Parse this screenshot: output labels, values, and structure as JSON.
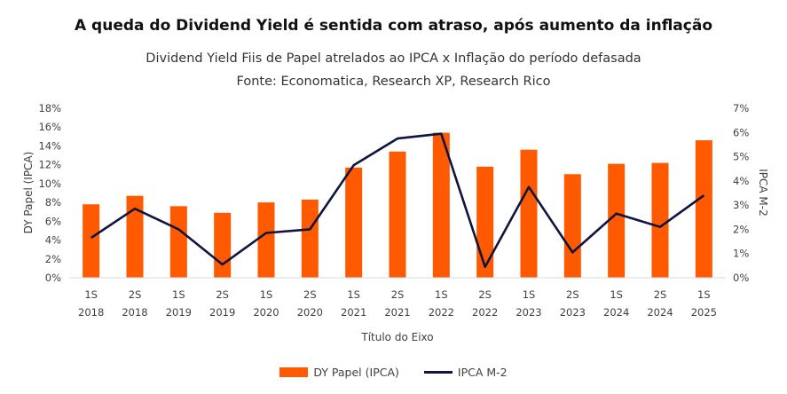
{
  "header": {
    "title": "A queda do Dividend Yield é sentida com atraso, após aumento da inflação",
    "subtitle": "Dividend Yield Fiis de Papel atrelados ao IPCA x Inflação do período defasada",
    "source": "Fonte: Economatica, Research XP, Research Rico"
  },
  "colors": {
    "bar": "#FF5A00",
    "line": "#0F1440",
    "axis": "#D9D9D9"
  },
  "chart_data": {
    "type": "bar",
    "title": "A queda do Dividend Yield é sentida com atraso, após aumento da inflação",
    "xlabel": "Título do Eixo",
    "ylabel": "DY Papel (IPCA)",
    "y2label": "IPCA M-2",
    "categories": [
      [
        "1S",
        "2018"
      ],
      [
        "2S",
        "2018"
      ],
      [
        "1S",
        "2019"
      ],
      [
        "2S",
        "2019"
      ],
      [
        "1S",
        "2020"
      ],
      [
        "2S",
        "2020"
      ],
      [
        "1S",
        "2021"
      ],
      [
        "2S",
        "2021"
      ],
      [
        "1S",
        "2022"
      ],
      [
        "2S",
        "2022"
      ],
      [
        "1S",
        "2023"
      ],
      [
        "2S",
        "2023"
      ],
      [
        "1S",
        "2024"
      ],
      [
        "2S",
        "2024"
      ],
      [
        "1S",
        "2025"
      ]
    ],
    "ylim": [
      0,
      18
    ],
    "yticks": [
      "0%",
      "2%",
      "4%",
      "6%",
      "8%",
      "10%",
      "12%",
      "14%",
      "16%",
      "18%"
    ],
    "y2lim": [
      0,
      7
    ],
    "y2ticks": [
      "0%",
      "1%",
      "2%",
      "3%",
      "4%",
      "5%",
      "6%",
      "7%"
    ],
    "series": [
      {
        "name": "DY Papel (IPCA)",
        "type": "bar",
        "axis": "left",
        "values": [
          7.8,
          8.7,
          7.6,
          6.9,
          8.0,
          8.3,
          11.7,
          13.4,
          15.4,
          11.8,
          13.6,
          11.0,
          12.1,
          12.2,
          14.6
        ]
      },
      {
        "name": "IPCA M-2",
        "type": "line",
        "axis": "right",
        "values": [
          1.65,
          2.85,
          2.0,
          0.55,
          1.85,
          2.0,
          4.65,
          5.75,
          5.95,
          0.45,
          3.75,
          1.05,
          2.65,
          2.1,
          3.4
        ]
      }
    ],
    "legend": "bottom"
  }
}
